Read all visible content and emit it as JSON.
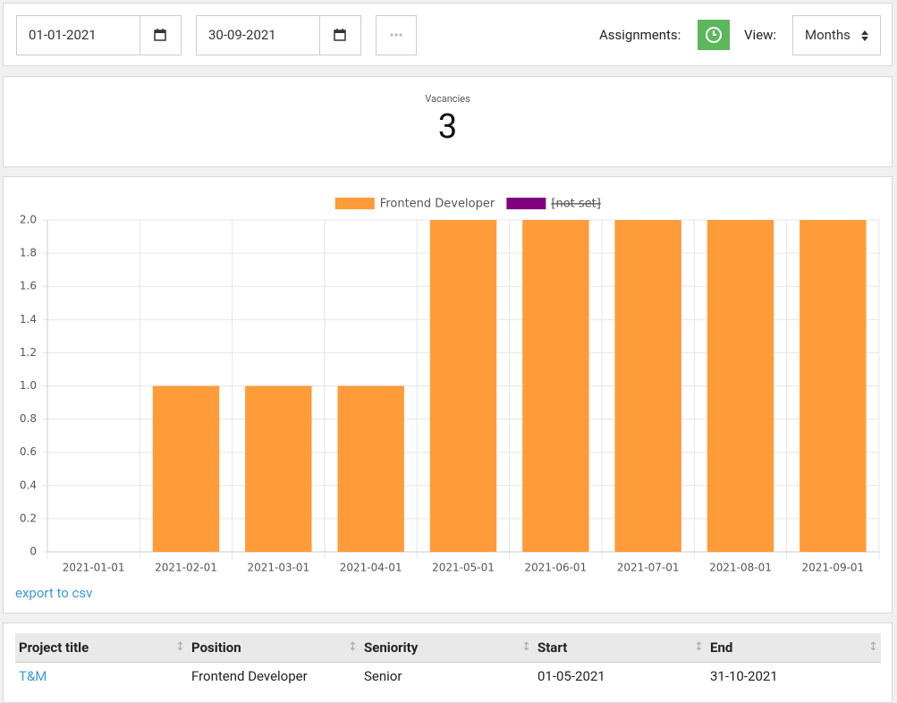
{
  "toolbar": {
    "start_date": "01-01-2021",
    "end_date": "30-09-2021",
    "assignments_label": "Assignments:",
    "view_label": "View:",
    "view_value": "Months"
  },
  "summary": {
    "label": "Vacancies",
    "value": 3
  },
  "chart_data": {
    "type": "bar",
    "categories": [
      "2021-01-01",
      "2021-02-01",
      "2021-03-01",
      "2021-04-01",
      "2021-05-01",
      "2021-06-01",
      "2021-07-01",
      "2021-08-01",
      "2021-09-01"
    ],
    "series": [
      {
        "name": "Frontend Developer",
        "color": "#ff9b38",
        "values": [
          0,
          1,
          1,
          1,
          2,
          2,
          2,
          2,
          2
        ]
      },
      {
        "name": "[not set]",
        "color": "#800080",
        "hidden": true,
        "values": [
          null,
          null,
          null,
          null,
          null,
          null,
          null,
          null,
          null
        ]
      }
    ],
    "ylim": [
      0,
      2
    ],
    "yticks": [
      0,
      0.2,
      0.4,
      0.6,
      0.8,
      {
        "value": 1,
        "label": "1.0"
      },
      1.2,
      1.4,
      1.6,
      1.8,
      {
        "value": 2,
        "label": "2.0"
      }
    ],
    "grid": true,
    "legend": "top"
  },
  "export_link": "export to csv",
  "table": {
    "headers": [
      "Project title",
      "Position",
      "Seniority",
      "Start",
      "End"
    ],
    "rows": [
      [
        "T&M",
        "Frontend Developer",
        "Senior",
        "01-05-2021",
        "31-10-2021"
      ]
    ]
  }
}
